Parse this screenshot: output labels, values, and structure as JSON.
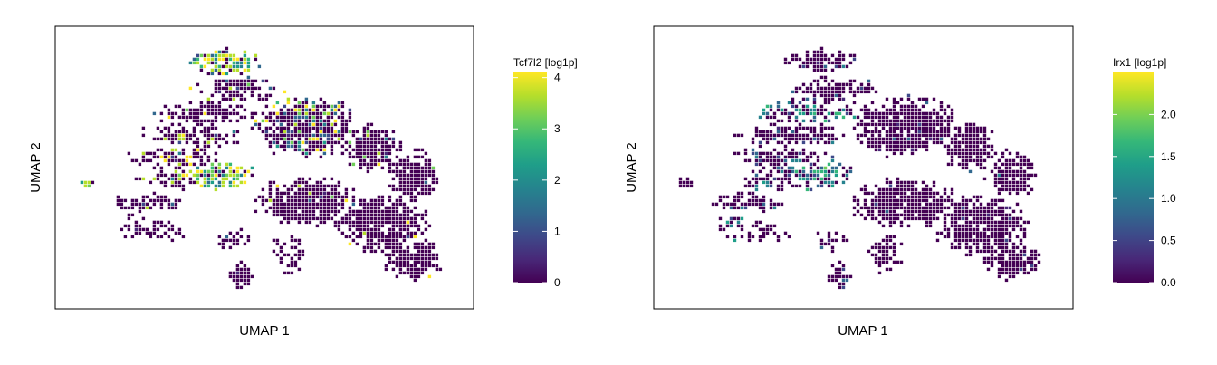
{
  "chart_data": [
    {
      "type": "heatmap",
      "title": "",
      "xlabel": "UMAP 1",
      "ylabel": "UMAP 2",
      "colorbar": {
        "label": "Tcf7l2 [log1p]",
        "colormap": "viridis",
        "range": [
          0,
          4.1
        ],
        "ticks": [
          0,
          1,
          2,
          3,
          4
        ]
      },
      "x_ticks_shown": false,
      "y_ticks_shown": false,
      "high_expression_regions": [
        "upper-left arc",
        "left-center band",
        "far-left islet"
      ],
      "point_size": "small hexbins"
    },
    {
      "type": "heatmap",
      "title": "",
      "xlabel": "UMAP 1",
      "ylabel": "UMAP 2",
      "colorbar": {
        "label": "Irx1 [log1p]",
        "colormap": "viridis",
        "range": [
          0,
          2.5
        ],
        "ticks": [
          0.0,
          0.5,
          1.0,
          1.5,
          2.0
        ],
        "tick_labels": [
          "0.0",
          "0.5",
          "1.0",
          "1.5",
          "2.0"
        ]
      },
      "x_ticks_shown": false,
      "y_ticks_shown": false,
      "high_expression_regions": [
        "upper-left streak",
        "left-center band"
      ],
      "point_size": "small hexbins"
    }
  ],
  "style": {
    "background": "#ffffff",
    "frame_color": "#000000",
    "viridis": [
      "#440154",
      "#482878",
      "#3e4989",
      "#31688e",
      "#26828e",
      "#1f9e89",
      "#35b779",
      "#6ece58",
      "#b5de2b",
      "#fde725"
    ]
  }
}
